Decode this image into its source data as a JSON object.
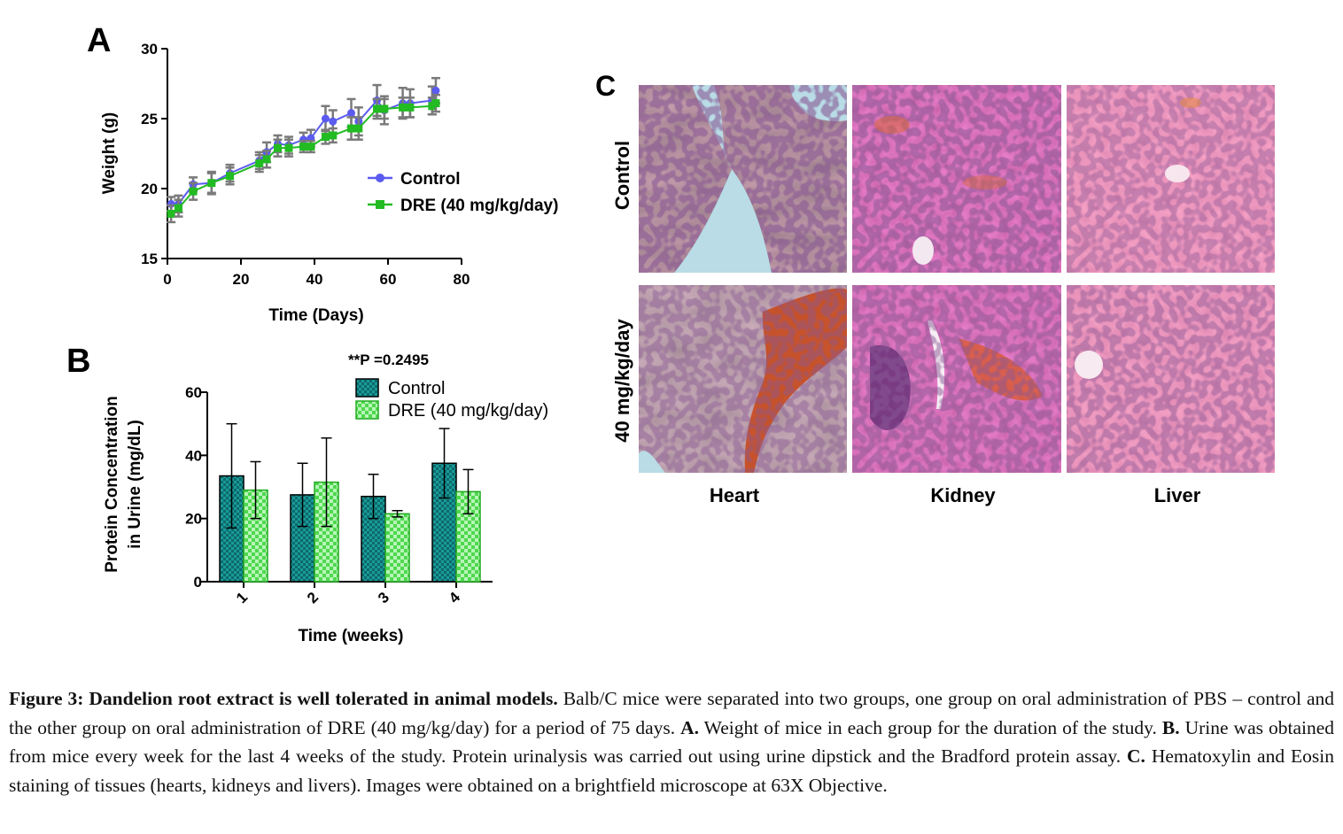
{
  "panelA": {
    "letter": "A",
    "chart_data": {
      "type": "line",
      "xlabel": "Time (Days)",
      "ylabel": "Weight (g)",
      "xlim": [
        0,
        80
      ],
      "ylim": [
        15,
        30
      ],
      "xticks": [
        "0",
        "20",
        "40",
        "60",
        "80"
      ],
      "yticks": [
        "15",
        "20",
        "25",
        "30"
      ],
      "legend_position": "right",
      "series": [
        {
          "name": "Control",
          "color": "#5b5bf0",
          "x": [
            1,
            3,
            7,
            12,
            17,
            25,
            27,
            30,
            33,
            37,
            39,
            43,
            45,
            50,
            52,
            57,
            59,
            64,
            66,
            72,
            73
          ],
          "y": [
            18.9,
            18.9,
            20.3,
            20.4,
            21.1,
            22.0,
            22.6,
            23.2,
            23.1,
            23.5,
            23.6,
            25.0,
            24.8,
            25.4,
            24.8,
            26.3,
            25.6,
            26.1,
            26.1,
            26.3,
            27.0
          ],
          "err": [
            0.5,
            0.6,
            0.5,
            0.8,
            0.6,
            0.6,
            0.7,
            0.6,
            0.6,
            0.5,
            0.6,
            0.9,
            0.8,
            1.0,
            1.0,
            1.1,
            1.0,
            1.1,
            1.0,
            1.0,
            0.9
          ]
        },
        {
          "name": "DRE (40 mg/kg/day)",
          "color": "#22bb22",
          "x": [
            1,
            3,
            7,
            12,
            17,
            25,
            27,
            30,
            33,
            37,
            39,
            43,
            45,
            50,
            52,
            57,
            59,
            64,
            66,
            72,
            73
          ],
          "y": [
            18.2,
            18.6,
            19.8,
            20.4,
            20.9,
            21.8,
            22.1,
            22.9,
            22.9,
            23.0,
            23.0,
            23.7,
            23.8,
            24.3,
            24.3,
            25.7,
            25.7,
            25.8,
            25.8,
            25.9,
            26.1
          ],
          "err": [
            0.6,
            0.6,
            0.6,
            0.7,
            0.6,
            0.6,
            0.6,
            0.6,
            0.6,
            0.4,
            0.4,
            0.5,
            0.5,
            0.8,
            0.8,
            0.7,
            0.7,
            0.7,
            0.7,
            0.6,
            0.6
          ]
        }
      ]
    }
  },
  "panelB": {
    "letter": "B",
    "annotation": "**P =0.2495",
    "chart_data": {
      "type": "bar",
      "xlabel": "Time (weeks)",
      "ylabel_line1": "Protein Concentration",
      "ylabel_line2": "in Urine (mg/dL)",
      "categories": [
        "1",
        "2",
        "3",
        "4"
      ],
      "ylim": [
        0,
        60
      ],
      "yticks": [
        "0",
        "20",
        "40",
        "60"
      ],
      "legend_position": "top-right",
      "series": [
        {
          "name": "Control",
          "color": "#1a9a9a",
          "values": [
            33.5,
            27.5,
            27.0,
            37.5
          ],
          "err": [
            16.5,
            10.0,
            7.0,
            11.0
          ]
        },
        {
          "name": "DRE (40 mg/kg/day)",
          "color": "#4ed84e",
          "values": [
            29.0,
            31.5,
            21.5,
            28.5
          ],
          "err": [
            9.0,
            14.0,
            1.0,
            7.0
          ]
        }
      ]
    }
  },
  "panelC": {
    "letter": "C",
    "rows": [
      "Control",
      "40 mg/kg/day"
    ],
    "columns": [
      "Heart",
      "Kidney",
      "Liver"
    ]
  },
  "caption": {
    "bold": "Figure 3: Dandelion root extract is well tolerated in animal models.",
    "t1": " Balb/C mice were separated into two groups, one group on oral administration of PBS – control and the other group on oral administration of DRE (40 mg/kg/day) for a period of 75 days. ",
    "a": "A.",
    "t2": " Weight of mice in each group for the duration of the study. ",
    "b": "B.",
    "t3": " Urine was obtained from mice every week for the last 4 weeks of the study. Protein urinalysis was carried out using urine dipstick and the Bradford protein assay. ",
    "c": "C.",
    "t4": " Hematoxylin and Eosin staining of tissues (hearts, kidneys and livers). Images were obtained on a brightfield microscope at 63X Objective."
  }
}
